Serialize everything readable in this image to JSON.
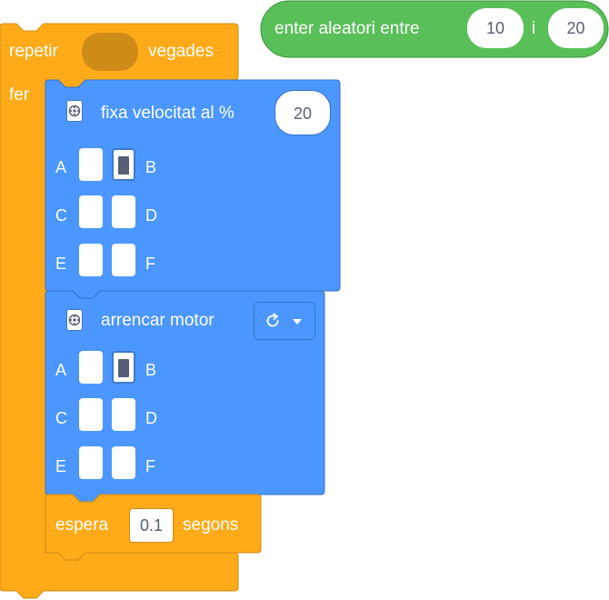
{
  "colors": {
    "control": "#ffab19",
    "control_border": "#cf8b17",
    "motion": "#4c97ff",
    "motion_border": "#3373cc",
    "operator": "#59c059",
    "operator_border": "#389438",
    "input_text": "#575e75"
  },
  "random_block": {
    "label": "enter aleatori entre",
    "from": "10",
    "joiner": "i",
    "to": "20"
  },
  "repeat_block": {
    "label": "repetir",
    "suffix": "vegades",
    "body_label": "fer"
  },
  "set_speed_block": {
    "icon": "motor-extension-icon",
    "label": "fixa velocitat al %",
    "value": "20",
    "ports": {
      "a": "A",
      "b": "B",
      "c": "C",
      "d": "D",
      "e": "E",
      "f": "F"
    },
    "selected_port": "B"
  },
  "start_motor_block": {
    "icon": "motor-extension-icon",
    "label": "arrencar motor",
    "direction_icon": "rotate-clockwise-icon",
    "dropdown_icon": "caret-down-icon",
    "ports": {
      "a": "A",
      "b": "B",
      "c": "C",
      "d": "D",
      "e": "E",
      "f": "F"
    },
    "selected_port": "B"
  },
  "wait_block": {
    "label": "espera",
    "value": "0.1",
    "suffix": "segons"
  }
}
